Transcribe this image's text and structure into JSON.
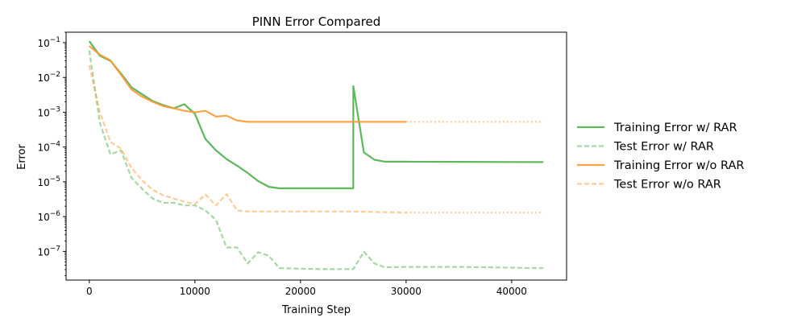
{
  "chart_data": {
    "type": "line",
    "title": "PINN Error Compared",
    "xlabel": "Training Step",
    "ylabel": "Error",
    "xlim": [
      -2200,
      45200
    ],
    "ylim": [
      1.5e-08,
      0.2
    ],
    "yscale": "log",
    "x_ticks": [
      {
        "value": 0,
        "label": "0"
      },
      {
        "value": 10000,
        "label": "10000"
      },
      {
        "value": 20000,
        "label": "20000"
      },
      {
        "value": 30000,
        "label": "30000"
      },
      {
        "value": 40000,
        "label": "40000"
      }
    ],
    "y_ticks": [
      {
        "value": 0.1,
        "base": "10",
        "exp": "−1"
      },
      {
        "value": 0.01,
        "base": "10",
        "exp": "−2"
      },
      {
        "value": 0.001,
        "base": "10",
        "exp": "−3"
      },
      {
        "value": 0.0001,
        "base": "10",
        "exp": "−4"
      },
      {
        "value": 1e-05,
        "base": "10",
        "exp": "−5"
      },
      {
        "value": 1e-06,
        "base": "10",
        "exp": "−6"
      },
      {
        "value": 1e-07,
        "base": "10",
        "exp": "−7"
      }
    ],
    "grid": false,
    "legend_position": "right-outside",
    "series": [
      {
        "name": "Training Error w/ RAR",
        "color": "#4daf4a",
        "style": "solid",
        "opacity": 0.9,
        "x": [
          0,
          1000,
          2000,
          3000,
          4000,
          5000,
          6000,
          7000,
          8000,
          9000,
          10000,
          11000,
          12000,
          13000,
          14000,
          15000,
          16000,
          17000,
          18000,
          19000,
          20000,
          21000,
          22000,
          23000,
          24000,
          24999,
          25000,
          26000,
          27000,
          28000,
          30000,
          35000,
          40000,
          43000
        ],
        "y": [
          0.11,
          0.042,
          0.03,
          0.013,
          0.0052,
          0.0033,
          0.0021,
          0.0016,
          0.0013,
          0.0017,
          0.0009,
          0.00017,
          8e-05,
          4.5e-05,
          2.9e-05,
          1.8e-05,
          1.05e-05,
          7.2e-06,
          6.5e-06,
          6.5e-06,
          6.5e-06,
          6.5e-06,
          6.5e-06,
          6.5e-06,
          6.5e-06,
          6.5e-06,
          0.0056,
          7e-05,
          4.3e-05,
          3.8e-05,
          3.8e-05,
          3.75e-05,
          3.72e-05,
          3.7e-05
        ]
      },
      {
        "name": "Test Error w/ RAR",
        "color": "#4daf4a",
        "style": "dashed",
        "opacity": 0.5,
        "x": [
          0,
          1000,
          2000,
          3000,
          4000,
          5000,
          6000,
          7000,
          8000,
          9000,
          10000,
          11000,
          12000,
          13000,
          14000,
          15000,
          16000,
          17000,
          18000,
          20000,
          22000,
          24000,
          25000,
          26000,
          27000,
          28000,
          30000,
          35000,
          40000,
          43000
        ],
        "y": [
          0.06,
          0.0005,
          6.2e-05,
          8e-05,
          1.3e-05,
          6.3e-06,
          3.3e-06,
          2.5e-06,
          2.5e-06,
          2.1e-06,
          2.1e-06,
          1.5e-06,
          8e-07,
          1.3e-07,
          1.3e-07,
          4.5e-08,
          9.5e-08,
          7.5e-08,
          3.3e-08,
          3.2e-08,
          3.1e-08,
          3.1e-08,
          3.1e-08,
          9.8e-08,
          4.5e-08,
          3.5e-08,
          3.6e-08,
          3.6e-08,
          3.4e-08,
          3.3e-08
        ]
      },
      {
        "name": "Training Error w/o RAR",
        "color": "#ff9933",
        "style": "solid",
        "opacity": 0.9,
        "x": [
          0,
          1000,
          2000,
          3000,
          4000,
          5000,
          6000,
          7000,
          8000,
          9000,
          10000,
          11000,
          12000,
          13000,
          14000,
          15000,
          20000,
          25000,
          30000
        ],
        "y": [
          0.08,
          0.045,
          0.031,
          0.012,
          0.0045,
          0.0028,
          0.002,
          0.0015,
          0.0013,
          0.0011,
          0.001,
          0.0011,
          0.00075,
          0.0008,
          0.00058,
          0.00053,
          0.00053,
          0.00053,
          0.00053
        ]
      },
      {
        "name": "Training Error w/o RAR (extrapolated)",
        "legend": false,
        "color": "#ff9933",
        "style": "dotted",
        "opacity": 0.5,
        "x": [
          30000,
          43000
        ],
        "y": [
          0.00053,
          0.00053
        ]
      },
      {
        "name": "Test Error w/o RAR",
        "color": "#ff9933",
        "style": "dashed",
        "opacity": 0.5,
        "x": [
          0,
          1000,
          2000,
          3000,
          4000,
          5000,
          6000,
          7000,
          8000,
          9000,
          10000,
          11000,
          12000,
          13000,
          14000,
          15000,
          20000,
          25000,
          30000
        ],
        "y": [
          0.022,
          0.001,
          0.00014,
          9e-05,
          2.5e-05,
          1.1e-05,
          5.9e-06,
          4.1e-06,
          3.3e-06,
          2.7e-06,
          2.3e-06,
          4.3e-06,
          2.1e-06,
          4.4e-06,
          1.5e-06,
          1.4e-06,
          1.4e-06,
          1.4e-06,
          1.3e-06
        ]
      },
      {
        "name": "Test Error w/o RAR (extrapolated)",
        "legend": false,
        "color": "#ff9933",
        "style": "dotted",
        "opacity": 0.5,
        "x": [
          30000,
          43000
        ],
        "y": [
          1.3e-06,
          1.3e-06
        ]
      }
    ],
    "legend": [
      {
        "label": "Training Error w/ RAR",
        "color": "#4daf4a",
        "style": "solid",
        "opacity": 0.9
      },
      {
        "label": "Test Error w/ RAR",
        "color": "#4daf4a",
        "style": "dashed",
        "opacity": 0.5
      },
      {
        "label": "Training Error w/o RAR",
        "color": "#ff9933",
        "style": "solid",
        "opacity": 0.9
      },
      {
        "label": "Test Error w/o RAR",
        "color": "#ff9933",
        "style": "dashed",
        "opacity": 0.5
      }
    ]
  }
}
